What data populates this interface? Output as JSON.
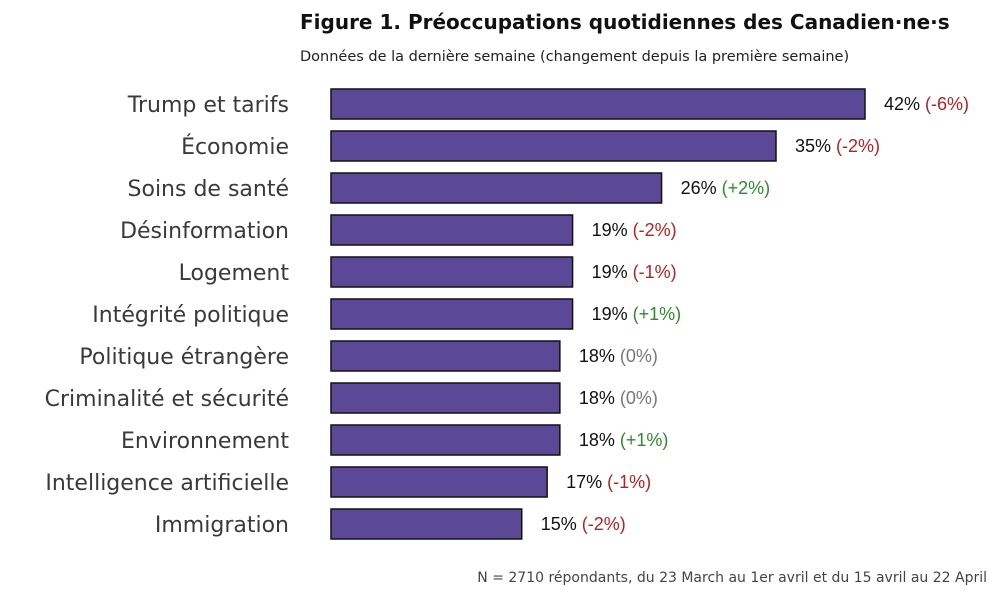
{
  "colors": {
    "bar_fill": "#5b4896",
    "bar_stroke": "#111111",
    "negative": "#b22222",
    "positive": "#2e8b2e",
    "neutral": "#777777"
  },
  "chart_data": {
    "type": "bar",
    "orientation": "horizontal",
    "title": "Figure 1. Préoccupations quotidiennes des Canadien·ne·s",
    "subtitle": "Données de la dernière semaine (changement depuis la première semaine)",
    "note": "N = 2710 répondants, du 23 March au 1er avril et du 15 avril au 22 April",
    "value_suffix": "%",
    "xlim": [
      0,
      42
    ],
    "categories": [
      "Trump et tarifs",
      "Économie",
      "Soins de santé",
      "Désinformation",
      "Logement",
      "Intégrité politique",
      "Politique étrangère",
      "Criminalité et sécurité",
      "Environnement",
      "Intelligence artificielle",
      "Immigration"
    ],
    "values": [
      42,
      35,
      26,
      19,
      19,
      19,
      18,
      18,
      18,
      17,
      15
    ],
    "changes": [
      "(-6%)",
      "(-2%)",
      "(+2%)",
      "(-2%)",
      "(-1%)",
      "(+1%)",
      "(0%)",
      "(0%)",
      "(+1%)",
      "(-1%)",
      "(-2%)"
    ],
    "change_directions": [
      "negative",
      "negative",
      "positive",
      "negative",
      "negative",
      "positive",
      "neutral",
      "neutral",
      "positive",
      "negative",
      "negative"
    ]
  }
}
